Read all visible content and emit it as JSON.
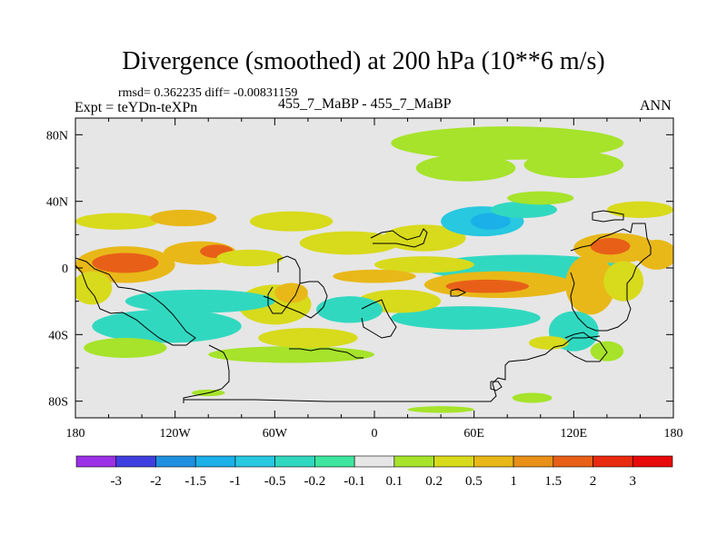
{
  "chart_data": {
    "type": "heatmap",
    "title": "Divergence (smoothed) at 200 hPa (10**6 m/s)",
    "stats_text": "rmsd= 0.362235 diff= -0.00831159",
    "experiment_label": "Expt = teYDn-teXPn",
    "cases_label": "455_7_MaBP - 455_7_MaBP",
    "season_label": "ANN",
    "x_axis": {
      "range": [
        -180,
        180
      ],
      "ticks": [
        -180,
        -120,
        -60,
        0,
        60,
        120,
        180
      ],
      "tick_labels": [
        "180",
        "120W",
        "60W",
        "0",
        "60E",
        "120E",
        "180"
      ]
    },
    "y_axis": {
      "range": [
        -90,
        90
      ],
      "ticks": [
        80,
        40,
        0,
        -40,
        -80
      ],
      "tick_labels": [
        "80N",
        "40N",
        "0",
        "40S",
        "80S"
      ]
    },
    "colorbar": {
      "levels": [
        "-3",
        "-2",
        "-1.5",
        "-1",
        "-0.5",
        "-0.2",
        "-0.1",
        "0.1",
        "0.2",
        "0.5",
        "1",
        "1.5",
        "2",
        "3"
      ],
      "colors": [
        "#9b30e6",
        "#3f3fe0",
        "#1f8fe0",
        "#1bb0e8",
        "#27c8e0",
        "#31d8c0",
        "#3ee6a0",
        "#e6e6e6",
        "#a6e32a",
        "#d8da1c",
        "#e8b818",
        "#e89018",
        "#e86018",
        "#e82a10",
        "#e80a0a"
      ]
    },
    "field_regions": [
      {
        "lon": -150,
        "lat": 2,
        "rlon": 30,
        "rlat": 11,
        "cls": 10
      },
      {
        "lon": -150,
        "lat": 3,
        "rlon": 20,
        "rlat": 6,
        "cls": 12
      },
      {
        "lon": -105,
        "lat": 9,
        "rlon": 22,
        "rlat": 7,
        "cls": 10
      },
      {
        "lon": -95,
        "lat": 10,
        "rlon": 10,
        "rlat": 4,
        "cls": 12
      },
      {
        "lon": -75,
        "lat": 6,
        "rlon": 20,
        "rlat": 5,
        "cls": 9
      },
      {
        "lon": -170,
        "lat": -12,
        "rlon": 12,
        "rlat": 10,
        "cls": 9
      },
      {
        "lon": -60,
        "lat": -22,
        "rlon": 22,
        "rlat": 12,
        "cls": 9
      },
      {
        "lon": -50,
        "lat": -15,
        "rlon": 10,
        "rlat": 6,
        "cls": 10
      },
      {
        "lon": -105,
        "lat": -20,
        "rlon": 45,
        "rlat": 7,
        "cls": 5
      },
      {
        "lon": -125,
        "lat": -35,
        "rlon": 45,
        "rlat": 10,
        "cls": 5
      },
      {
        "lon": -150,
        "lat": -48,
        "rlon": 25,
        "rlat": 6,
        "cls": 8
      },
      {
        "lon": -50,
        "lat": -52,
        "rlon": 50,
        "rlat": 5,
        "cls": 8
      },
      {
        "lon": -40,
        "lat": -42,
        "rlon": 30,
        "rlat": 6,
        "cls": 9
      },
      {
        "lon": -155,
        "lat": 28,
        "rlon": 25,
        "rlat": 5,
        "cls": 9
      },
      {
        "lon": -115,
        "lat": 30,
        "rlon": 20,
        "rlat": 5,
        "cls": 10
      },
      {
        "lon": -50,
        "lat": 28,
        "rlon": 25,
        "rlat": 6,
        "cls": 9
      },
      {
        "lon": -15,
        "lat": 15,
        "rlon": 30,
        "rlat": 7,
        "cls": 9
      },
      {
        "lon": 30,
        "lat": 18,
        "rlon": 25,
        "rlat": 8,
        "cls": 9
      },
      {
        "lon": 65,
        "lat": 28,
        "rlon": 25,
        "rlat": 9,
        "cls": 4
      },
      {
        "lon": 70,
        "lat": 28,
        "rlon": 12,
        "rlat": 5,
        "cls": 3
      },
      {
        "lon": 90,
        "lat": 35,
        "rlon": 20,
        "rlat": 5,
        "cls": 5
      },
      {
        "lon": 80,
        "lat": 75,
        "rlon": 70,
        "rlat": 10,
        "cls": 8
      },
      {
        "lon": 55,
        "lat": 60,
        "rlon": 30,
        "rlat": 8,
        "cls": 8
      },
      {
        "lon": 120,
        "lat": 62,
        "rlon": 30,
        "rlat": 8,
        "cls": 8
      },
      {
        "lon": 100,
        "lat": 42,
        "rlon": 20,
        "rlat": 4,
        "cls": 8
      },
      {
        "lon": 160,
        "lat": 35,
        "rlon": 20,
        "rlat": 5,
        "cls": 9
      },
      {
        "lon": 90,
        "lat": 0,
        "rlon": 60,
        "rlat": 8,
        "cls": 5
      },
      {
        "lon": 30,
        "lat": 2,
        "rlon": 30,
        "rlat": 5,
        "cls": 9
      },
      {
        "lon": 0,
        "lat": -5,
        "rlon": 25,
        "rlat": 4,
        "cls": 10
      },
      {
        "lon": 75,
        "lat": -10,
        "rlon": 45,
        "rlat": 8,
        "cls": 10
      },
      {
        "lon": 68,
        "lat": -11,
        "rlon": 25,
        "rlat": 4,
        "cls": 12
      },
      {
        "lon": 55,
        "lat": -30,
        "rlon": 45,
        "rlat": 7,
        "cls": 5
      },
      {
        "lon": 15,
        "lat": -20,
        "rlon": 25,
        "rlat": 7,
        "cls": 9
      },
      {
        "lon": -15,
        "lat": -25,
        "rlon": 20,
        "rlat": 8,
        "cls": 5
      },
      {
        "lon": 145,
        "lat": 12,
        "rlon": 25,
        "rlat": 9,
        "cls": 10
      },
      {
        "lon": 142,
        "lat": 13,
        "rlon": 12,
        "rlat": 5,
        "cls": 12
      },
      {
        "lon": 170,
        "lat": 8,
        "rlon": 12,
        "rlat": 9,
        "cls": 10
      },
      {
        "lon": 130,
        "lat": -10,
        "rlon": 15,
        "rlat": 18,
        "cls": 10
      },
      {
        "lon": 150,
        "lat": -8,
        "rlon": 12,
        "rlat": 12,
        "cls": 9
      },
      {
        "lon": 120,
        "lat": -38,
        "rlon": 15,
        "rlat": 12,
        "cls": 5
      },
      {
        "lon": 140,
        "lat": -50,
        "rlon": 10,
        "rlat": 6,
        "cls": 8
      },
      {
        "lon": 105,
        "lat": -45,
        "rlon": 12,
        "rlat": 4,
        "cls": 9
      },
      {
        "lon": 95,
        "lat": -78,
        "rlon": 12,
        "rlat": 3,
        "cls": 8
      },
      {
        "lon": 40,
        "lat": -85,
        "rlon": 20,
        "rlat": 2,
        "cls": 8
      },
      {
        "lon": -100,
        "lat": -75,
        "rlon": 10,
        "rlat": 2,
        "cls": 8
      }
    ]
  }
}
